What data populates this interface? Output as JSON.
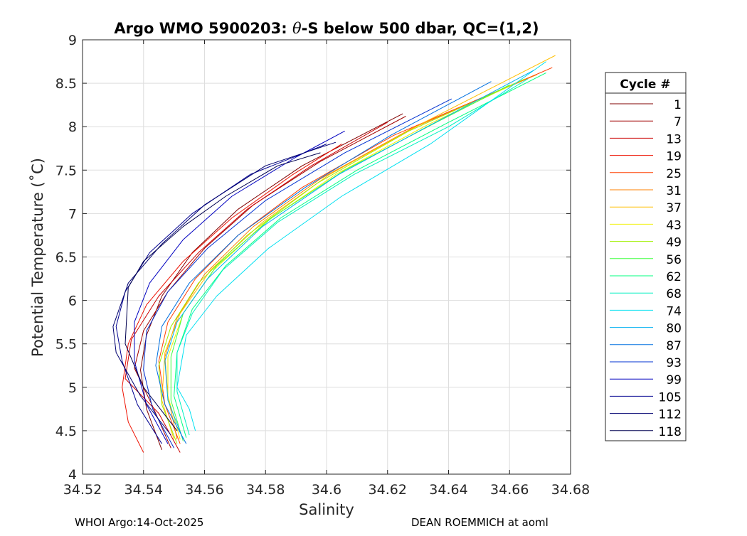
{
  "chart_data": {
    "type": "line",
    "title_parts": [
      "Argo WMO 5900203: ",
      "θ",
      "-S below 500 dbar,  QC=(1,2)"
    ],
    "xlabel": "Salinity",
    "ylabel": "Potential Temperature (˚C)",
    "xlim": [
      34.52,
      34.68
    ],
    "ylim": [
      4,
      9
    ],
    "xticks": [
      34.52,
      34.54,
      34.56,
      34.58,
      34.6,
      34.62,
      34.64,
      34.66,
      34.68
    ],
    "xtick_labels": [
      "34.52",
      "34.54",
      "34.56",
      "34.58",
      "34.6",
      "34.62",
      "34.64",
      "34.66",
      "34.68"
    ],
    "yticks": [
      4,
      4.5,
      5,
      5.5,
      6,
      6.5,
      7,
      7.5,
      8,
      8.5,
      9
    ],
    "ytick_labels": [
      "4",
      "4.5",
      "5",
      "5.5",
      "6",
      "6.5",
      "7",
      "7.5",
      "8",
      "8.5",
      "9"
    ],
    "grid": true,
    "legend_title": "Cycle #",
    "legend_position": "right-outside",
    "series": [
      {
        "name": "1",
        "color": "#800000",
        "points": [
          [
            34.546,
            4.28
          ],
          [
            34.541,
            4.75
          ],
          [
            34.539,
            5.2
          ],
          [
            34.541,
            5.6
          ],
          [
            34.546,
            6.05
          ],
          [
            34.556,
            6.55
          ],
          [
            34.571,
            7.05
          ],
          [
            34.592,
            7.55
          ],
          [
            34.625,
            8.15
          ]
        ]
      },
      {
        "name": "7",
        "color": "#a00000",
        "points": [
          [
            34.549,
            4.3
          ],
          [
            34.543,
            4.78
          ],
          [
            34.537,
            5.22
          ],
          [
            34.54,
            5.65
          ],
          [
            34.548,
            6.1
          ],
          [
            34.56,
            6.6
          ],
          [
            34.576,
            7.1
          ],
          [
            34.598,
            7.6
          ],
          [
            34.626,
            8.12
          ]
        ]
      },
      {
        "name": "13",
        "color": "#cc0000",
        "points": [
          [
            34.552,
            4.25
          ],
          [
            34.545,
            4.7
          ],
          [
            34.534,
            5.1
          ],
          [
            34.536,
            5.55
          ],
          [
            34.545,
            6.05
          ],
          [
            34.558,
            6.55
          ],
          [
            34.574,
            7.05
          ],
          [
            34.595,
            7.55
          ],
          [
            34.62,
            8.05
          ]
        ]
      },
      {
        "name": "19",
        "color": "#ee1100",
        "points": [
          [
            34.54,
            4.25
          ],
          [
            34.535,
            4.6
          ],
          [
            34.533,
            5.0
          ],
          [
            34.535,
            5.5
          ],
          [
            34.541,
            5.95
          ],
          [
            34.553,
            6.45
          ],
          [
            34.569,
            6.95
          ],
          [
            34.589,
            7.45
          ],
          [
            34.605,
            7.8
          ]
        ]
      },
      {
        "name": "25",
        "color": "#ff4000",
        "points": [
          [
            34.552,
            4.35
          ],
          [
            34.547,
            4.8
          ],
          [
            34.545,
            5.3
          ],
          [
            34.548,
            5.75
          ],
          [
            34.557,
            6.25
          ],
          [
            34.571,
            6.75
          ],
          [
            34.592,
            7.3
          ],
          [
            34.622,
            7.9
          ],
          [
            34.674,
            8.68
          ]
        ]
      },
      {
        "name": "31",
        "color": "#ff8000",
        "points": [
          [
            34.551,
            4.4
          ],
          [
            34.548,
            4.9
          ],
          [
            34.547,
            5.35
          ],
          [
            34.551,
            5.8
          ],
          [
            34.56,
            6.3
          ],
          [
            34.576,
            6.85
          ],
          [
            34.598,
            7.4
          ],
          [
            34.628,
            7.98
          ],
          [
            34.669,
            8.6
          ]
        ]
      },
      {
        "name": "37",
        "color": "#ffbf00",
        "points": [
          [
            34.55,
            4.4
          ],
          [
            34.546,
            4.85
          ],
          [
            34.547,
            5.4
          ],
          [
            34.552,
            5.85
          ],
          [
            34.562,
            6.35
          ],
          [
            34.579,
            6.9
          ],
          [
            34.601,
            7.45
          ],
          [
            34.632,
            8.05
          ],
          [
            34.675,
            8.82
          ]
        ]
      },
      {
        "name": "43",
        "color": "#f0f000",
        "points": [
          [
            34.552,
            4.4
          ],
          [
            34.548,
            4.9
          ],
          [
            34.548,
            5.35
          ],
          [
            34.553,
            5.85
          ],
          [
            34.563,
            6.35
          ],
          [
            34.58,
            6.9
          ],
          [
            34.603,
            7.45
          ],
          [
            34.633,
            8.02
          ],
          [
            34.662,
            8.5
          ]
        ]
      },
      {
        "name": "49",
        "color": "#a0f000",
        "points": [
          [
            34.551,
            4.35
          ],
          [
            34.546,
            4.8
          ],
          [
            34.545,
            5.25
          ],
          [
            34.549,
            5.7
          ],
          [
            34.558,
            6.2
          ],
          [
            34.574,
            6.75
          ],
          [
            34.597,
            7.35
          ],
          [
            34.627,
            7.95
          ],
          [
            34.665,
            8.55
          ]
        ]
      },
      {
        "name": "56",
        "color": "#40ff40",
        "points": [
          [
            34.553,
            4.38
          ],
          [
            34.549,
            4.85
          ],
          [
            34.549,
            5.35
          ],
          [
            34.553,
            5.85
          ],
          [
            34.564,
            6.4
          ],
          [
            34.582,
            6.95
          ],
          [
            34.606,
            7.5
          ],
          [
            34.636,
            8.05
          ],
          [
            34.66,
            8.48
          ]
        ]
      },
      {
        "name": "62",
        "color": "#00ff80",
        "points": [
          [
            34.554,
            4.42
          ],
          [
            34.55,
            4.9
          ],
          [
            34.551,
            5.4
          ],
          [
            34.556,
            5.9
          ],
          [
            34.567,
            6.4
          ],
          [
            34.585,
            6.95
          ],
          [
            34.61,
            7.5
          ],
          [
            34.64,
            8.05
          ],
          [
            34.672,
            8.62
          ]
        ]
      },
      {
        "name": "68",
        "color": "#00f0c0",
        "points": [
          [
            34.555,
            4.45
          ],
          [
            34.551,
            4.95
          ],
          [
            34.551,
            5.4
          ],
          [
            34.556,
            5.85
          ],
          [
            34.566,
            6.35
          ],
          [
            34.584,
            6.9
          ],
          [
            34.609,
            7.45
          ],
          [
            34.64,
            8.0
          ],
          [
            34.666,
            8.55
          ]
        ]
      },
      {
        "name": "74",
        "color": "#00e0f0",
        "points": [
          [
            34.557,
            4.5
          ],
          [
            34.555,
            4.75
          ],
          [
            34.551,
            5.0
          ],
          [
            34.554,
            5.6
          ],
          [
            34.564,
            6.05
          ],
          [
            34.581,
            6.6
          ],
          [
            34.605,
            7.2
          ],
          [
            34.634,
            7.8
          ],
          [
            34.672,
            8.75
          ]
        ]
      },
      {
        "name": "80",
        "color": "#00b0f0",
        "points": [
          [
            34.553,
            4.4
          ],
          [
            34.548,
            4.85
          ],
          [
            34.547,
            5.3
          ],
          [
            34.551,
            5.75
          ],
          [
            34.561,
            6.25
          ],
          [
            34.579,
            6.85
          ],
          [
            34.604,
            7.45
          ],
          [
            34.633,
            8.0
          ],
          [
            34.668,
            8.65
          ]
        ]
      },
      {
        "name": "87",
        "color": "#0070e0",
        "points": [
          [
            34.554,
            4.35
          ],
          [
            34.547,
            4.8
          ],
          [
            34.544,
            5.25
          ],
          [
            34.546,
            5.7
          ],
          [
            34.555,
            6.2
          ],
          [
            34.571,
            6.75
          ],
          [
            34.593,
            7.3
          ],
          [
            34.621,
            7.9
          ],
          [
            34.654,
            8.52
          ]
        ]
      },
      {
        "name": "93",
        "color": "#0030d0",
        "points": [
          [
            34.55,
            4.3
          ],
          [
            34.543,
            4.75
          ],
          [
            34.54,
            5.2
          ],
          [
            34.541,
            5.65
          ],
          [
            34.548,
            6.1
          ],
          [
            34.561,
            6.6
          ],
          [
            34.58,
            7.15
          ],
          [
            34.606,
            7.7
          ],
          [
            34.641,
            8.32
          ]
        ]
      },
      {
        "name": "99",
        "color": "#0000c0",
        "points": [
          [
            34.548,
            4.35
          ],
          [
            34.541,
            4.8
          ],
          [
            34.537,
            5.3
          ],
          [
            34.537,
            5.75
          ],
          [
            34.542,
            6.2
          ],
          [
            34.553,
            6.7
          ],
          [
            34.569,
            7.2
          ],
          [
            34.59,
            7.65
          ],
          [
            34.606,
            7.95
          ]
        ]
      },
      {
        "name": "105",
        "color": "#000090",
        "points": [
          [
            34.546,
            4.35
          ],
          [
            34.538,
            4.8
          ],
          [
            34.533,
            5.3
          ],
          [
            34.531,
            5.7
          ],
          [
            34.534,
            6.1
          ],
          [
            34.542,
            6.55
          ],
          [
            34.556,
            7.0
          ],
          [
            34.575,
            7.45
          ],
          [
            34.6,
            7.8
          ]
        ]
      },
      {
        "name": "112",
        "color": "#000070",
        "points": [
          [
            34.549,
            4.45
          ],
          [
            34.539,
            4.9
          ],
          [
            34.531,
            5.4
          ],
          [
            34.53,
            5.7
          ],
          [
            34.535,
            6.2
          ],
          [
            34.546,
            6.65
          ],
          [
            34.56,
            7.1
          ],
          [
            34.58,
            7.55
          ],
          [
            34.603,
            7.82
          ]
        ]
      },
      {
        "name": "118",
        "color": "#000050",
        "points": [
          [
            34.551,
            4.5
          ],
          [
            34.54,
            5.0
          ],
          [
            34.534,
            5.5
          ],
          [
            34.535,
            6.15
          ],
          [
            34.54,
            6.45
          ],
          [
            34.553,
            6.85
          ],
          [
            34.567,
            7.2
          ],
          [
            34.584,
            7.55
          ],
          [
            34.598,
            7.7
          ]
        ]
      }
    ]
  },
  "footer": {
    "left": "WHOI Argo:14-Oct-2025",
    "right": "DEAN ROEMMICH at aoml"
  }
}
